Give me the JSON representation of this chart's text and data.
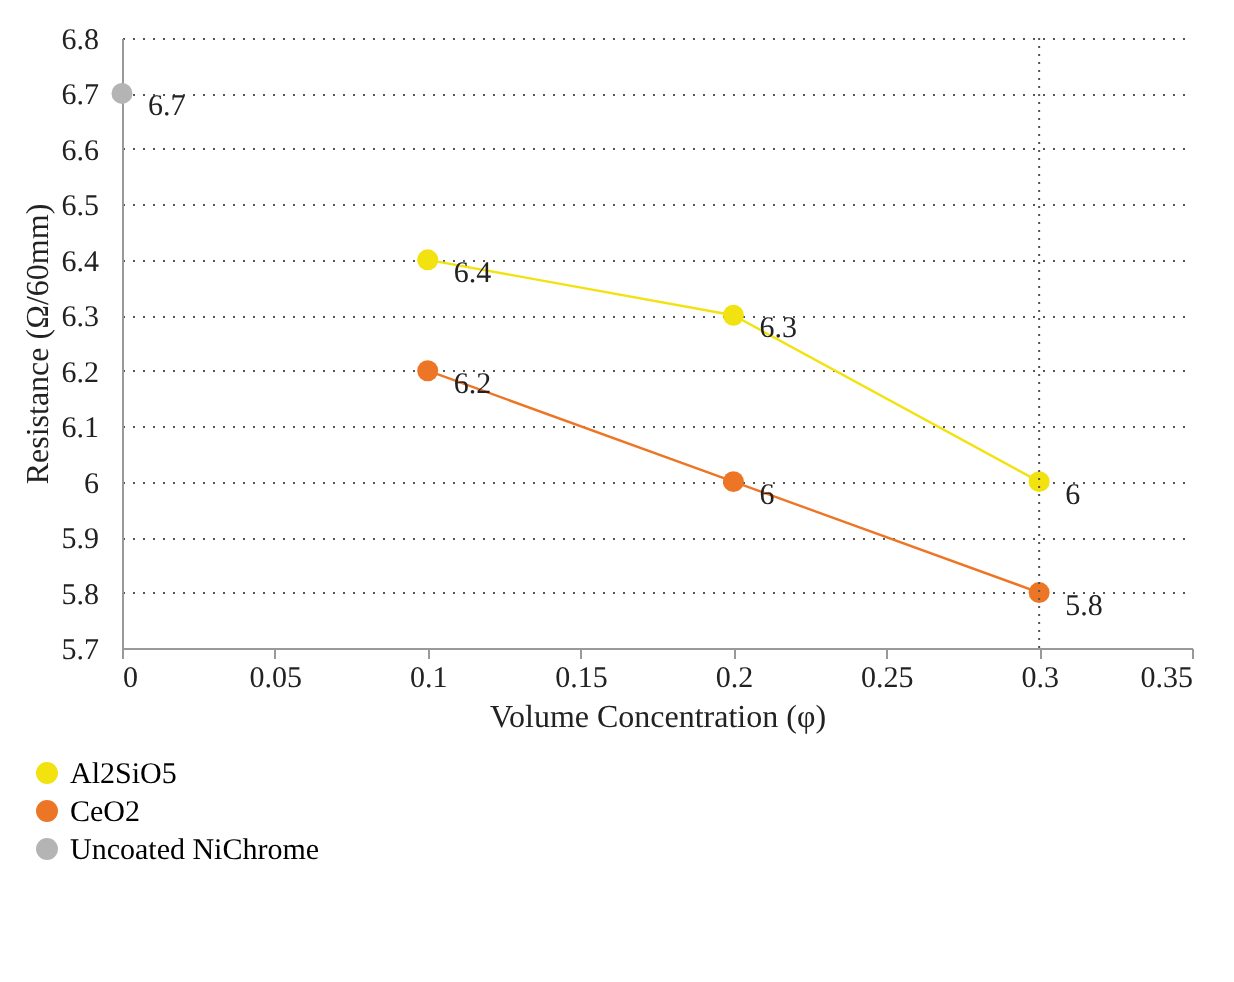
{
  "chart_data": {
    "type": "line",
    "xlabel": "Volume Concentration (φ)",
    "ylabel": "Resistance (Ω/60mm)",
    "xlim": [
      0,
      0.35
    ],
    "xticks": [
      0,
      0.05,
      0.1,
      0.15,
      0.2,
      0.25,
      0.3,
      0.35
    ],
    "ylim": [
      5.7,
      6.8
    ],
    "yticks": [
      5.7,
      5.8,
      5.9,
      6,
      6.1,
      6.2,
      6.3,
      6.4,
      6.5,
      6.6,
      6.7,
      6.8
    ],
    "series": [
      {
        "name": "Al2SiO5",
        "color": "#f2e20f",
        "x": [
          0.1,
          0.2,
          0.3
        ],
        "values": [
          6.4,
          6.3,
          6
        ]
      },
      {
        "name": "CeO2",
        "color": "#ed7626",
        "x": [
          0.1,
          0.2,
          0.3
        ],
        "values": [
          6.2,
          6,
          5.8
        ]
      },
      {
        "name": "Uncoated NiChrome",
        "color": "#b4b4b4",
        "x": [
          0
        ],
        "values": [
          6.7
        ]
      }
    ],
    "ref_lines": [
      {
        "axis": "x",
        "value": 0.3,
        "line_style": "dotted"
      }
    ],
    "data_labels": true,
    "grid": "y",
    "legend": "bottom",
    "marker": "circle",
    "line_style": "solid"
  }
}
